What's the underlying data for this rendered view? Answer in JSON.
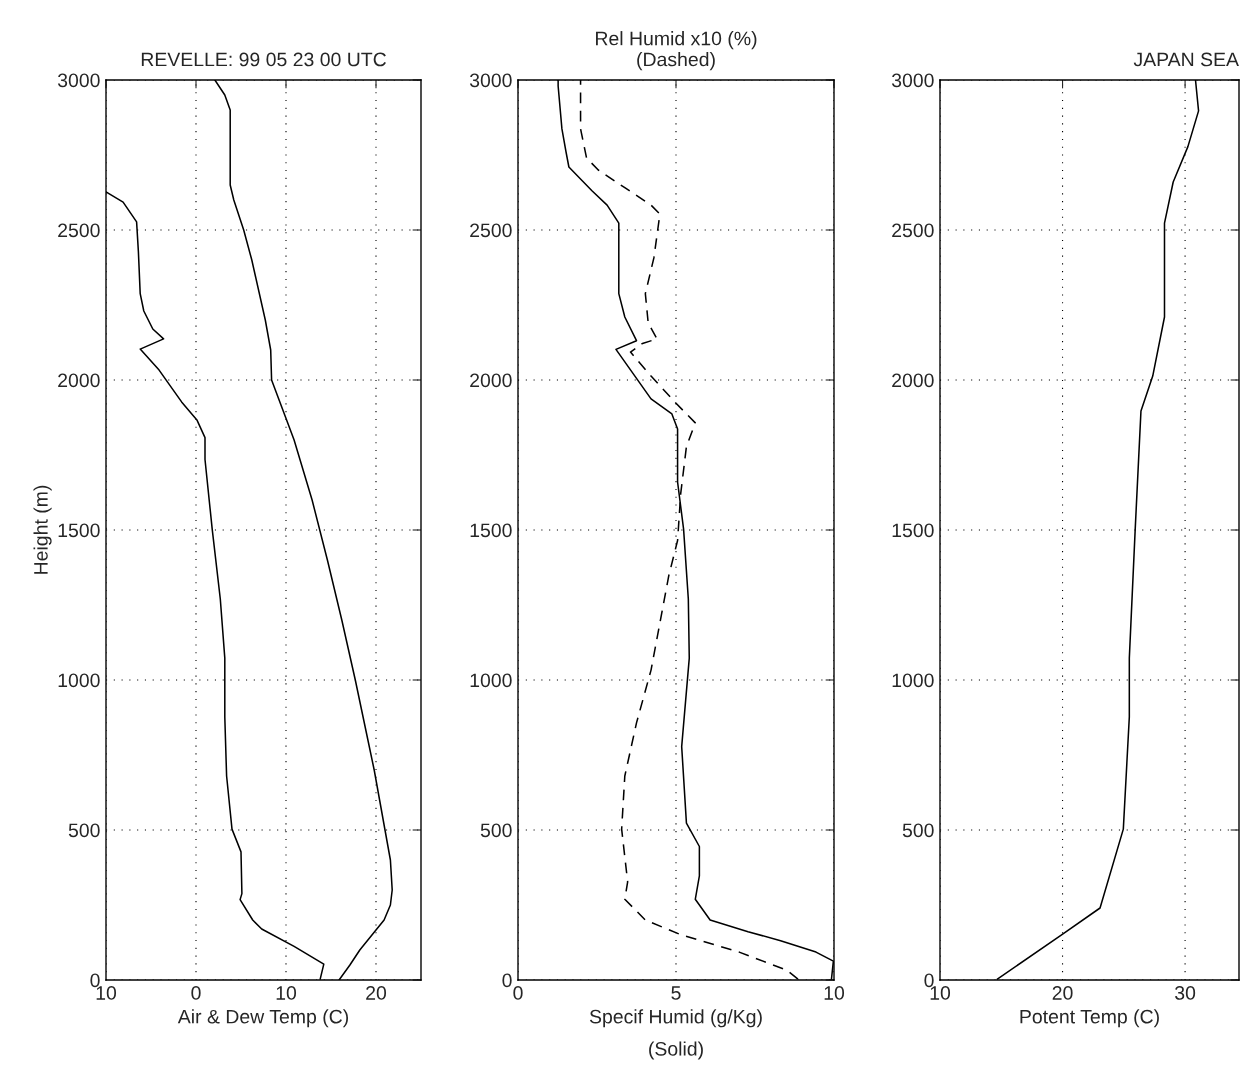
{
  "chart_data": [
    {
      "type": "line",
      "title": "REVELLE: 99 05 23 00 UTC",
      "xlabel": "Air & Dew Temp (C)",
      "ylabel": "Height (m)",
      "xlim": [
        -10,
        25
      ],
      "xticks": [
        {
          "value": -10,
          "label": "10"
        },
        0,
        10,
        20
      ],
      "ylim": [
        0,
        3000
      ],
      "yticks": [
        0,
        500,
        1000,
        1500,
        2000,
        2500,
        3000
      ],
      "grid": true,
      "line_style": "solid",
      "series": [
        {
          "color": "#000000",
          "x": [
            15.9,
            17.1,
            18.2,
            20.9,
            21.6,
            21.8,
            21.6,
            21.0,
            20.4,
            19.8,
            19.1,
            17.7,
            16.2,
            14.6,
            12.9,
            10.9,
            8.4,
            8.3,
            7.7,
            6.2,
            5.3,
            4.2,
            3.8,
            3.8,
            3.2,
            2.1
          ],
          "values": [
            0,
            50,
            100,
            200,
            250,
            300,
            400,
            500,
            600,
            700,
            800,
            1000,
            1200,
            1400,
            1600,
            1800,
            2000,
            2100,
            2200,
            2400,
            2500,
            2600,
            2650,
            2900,
            2950,
            3000
          ]
        },
        {
          "color": "#000000",
          "x": [
            13.8,
            14.2,
            10.9,
            7.3,
            6.3,
            4.9,
            5.1,
            5.0,
            4.0,
            3.4,
            3.2,
            3.2,
            2.7,
            1.8,
            1.0,
            1.0,
            0.1,
            -1.6,
            -4.1,
            -6.2,
            -3.6,
            -4.8,
            -5.8,
            -6.2,
            -6.4,
            -6.6,
            -8.1,
            -10.0
          ],
          "values": [
            3,
            53,
            112,
            170,
            200,
            268,
            288,
            427,
            503,
            680,
            877,
            1073,
            1270,
            1503,
            1735,
            1808,
            1867,
            1927,
            2033,
            2103,
            2137,
            2170,
            2230,
            2288,
            2427,
            2527,
            2593,
            2627
          ]
        }
      ]
    },
    {
      "type": "line",
      "title": "Rel Humid x10 (%)\n(Dashed)",
      "xlabel": "Specif Humid (g/Kg)\n(Solid)",
      "xlim": [
        0,
        10
      ],
      "xticks": [
        0,
        5,
        10
      ],
      "ylim": [
        0,
        3000
      ],
      "yticks": [
        0,
        500,
        1000,
        1500,
        2000,
        2500,
        3000
      ],
      "grid": true,
      "series": [
        {
          "color": "#000000",
          "line_style": "solid",
          "x": [
            9.92,
            9.98,
            9.43,
            8.31,
            7.28,
            6.08,
            5.61,
            5.74,
            5.74,
            5.33,
            5.18,
            5.42,
            5.39,
            5.24,
            5.05,
            5.05,
            4.87,
            4.21,
            3.1,
            3.75,
            3.38,
            3.19,
            3.19,
            2.82,
            2.34,
            1.61,
            1.52,
            1.39,
            1.27,
            1.27
          ],
          "values": [
            3,
            63,
            93,
            131,
            161,
            200,
            269,
            347,
            445,
            523,
            778,
            1073,
            1270,
            1503,
            1660,
            1837,
            1887,
            1937,
            2102,
            2131,
            2210,
            2288,
            2523,
            2583,
            2631,
            2710,
            2760,
            2837,
            2980,
            3000
          ]
        },
        {
          "color": "#000000",
          "line_style": "dashed",
          "x": [
            8.86,
            8.5,
            7.0,
            5.15,
            4.03,
            3.38,
            3.47,
            3.28,
            3.38,
            3.75,
            4.21,
            4.49,
            4.77,
            5.05,
            5.15,
            5.33,
            5.61,
            4.96,
            4.21,
            3.56,
            3.94,
            4.4,
            4.12,
            4.03,
            4.3,
            4.49,
            4.21,
            3.38,
            2.54,
            2.17,
            1.98,
            1.98
          ],
          "values": [
            3,
            33,
            93,
            151,
            200,
            269,
            327,
            503,
            680,
            857,
            1033,
            1190,
            1347,
            1465,
            1622,
            1778,
            1857,
            1927,
            2013,
            2093,
            2122,
            2137,
            2190,
            2288,
            2407,
            2553,
            2583,
            2641,
            2700,
            2740,
            2837,
            3000
          ]
        }
      ]
    },
    {
      "type": "line",
      "title": "JAPAN SEA",
      "xlabel": "Potent Temp (C)",
      "xlim": [
        10,
        34.4
      ],
      "xticks": [
        10,
        20,
        30
      ],
      "ylim": [
        0,
        3000
      ],
      "yticks": [
        0,
        500,
        1000,
        1500,
        2000,
        2500,
        3000
      ],
      "grid": true,
      "line_style": "solid",
      "series": [
        {
          "color": "#000000",
          "x": [
            14.68,
            19.95,
            23.06,
            24.96,
            25.45,
            25.45,
            25.93,
            26.4,
            27.36,
            28.32,
            28.32,
            29.03,
            30.23,
            31.1,
            30.85
          ],
          "values": [
            3,
            151,
            240,
            503,
            877,
            1073,
            1503,
            1897,
            2013,
            2210,
            2523,
            2660,
            2778,
            2897,
            3000
          ]
        }
      ]
    }
  ]
}
